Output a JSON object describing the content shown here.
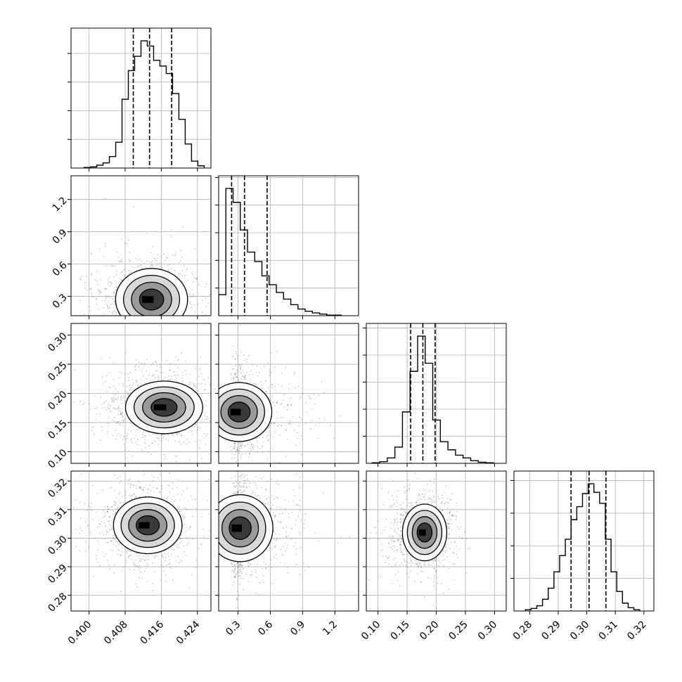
{
  "chart_data": {
    "type": "corner",
    "grid": true,
    "parameters": [
      {
        "range": [
          0.396,
          0.427
        ],
        "ticks": [
          0.4,
          0.408,
          0.416,
          0.424
        ],
        "tick_labels": [
          "0.400",
          "0.408",
          "0.416",
          "0.424"
        ],
        "quantiles": [
          0.4098,
          0.4134,
          0.4183
        ]
      },
      {
        "range": [
          0.12,
          1.42
        ],
        "ticks": [
          0.3,
          0.6,
          0.9,
          1.2
        ],
        "tick_labels": [
          "0.3",
          "0.6",
          "0.9",
          "1.2"
        ],
        "quantiles": [
          0.24,
          0.36,
          0.57
        ]
      },
      {
        "range": [
          0.08,
          0.32
        ],
        "ticks": [
          0.1,
          0.15,
          0.2,
          0.25,
          0.3
        ],
        "tick_labels": [
          "0.10",
          "0.15",
          "0.20",
          "0.25",
          "0.30"
        ],
        "quantiles": [
          0.156,
          0.177,
          0.198
        ]
      },
      {
        "range": [
          0.2745,
          0.3235
        ],
        "ticks": [
          0.28,
          0.29,
          0.3,
          0.31,
          0.32
        ],
        "tick_labels": [
          "0.28",
          "0.29",
          "0.30",
          "0.31",
          "0.32"
        ],
        "quantiles": [
          0.2945,
          0.3008,
          0.3067
        ]
      }
    ],
    "histograms": [
      {
        "param": 0,
        "edges": [
          0.3989,
          0.4003,
          0.4017,
          0.4031,
          0.4045,
          0.4059,
          0.4073,
          0.4087,
          0.4101,
          0.4115,
          0.4129,
          0.4143,
          0.4157,
          0.4171,
          0.4185,
          0.4199,
          0.4213,
          0.4227,
          0.4241,
          0.4255
        ],
        "counts": [
          1,
          2,
          5,
          9,
          20,
          45,
          120,
          170,
          195,
          222,
          213,
          188,
          178,
          165,
          130,
          85,
          42,
          12,
          4
        ]
      },
      {
        "param": 1,
        "edges": [
          0.12,
          0.187,
          0.254,
          0.321,
          0.388,
          0.455,
          0.522,
          0.589,
          0.656,
          0.723,
          0.79,
          0.857,
          0.924,
          0.991,
          1.058,
          1.125,
          1.192,
          1.259
        ],
        "counts": [
          38,
          230,
          205,
          155,
          115,
          98,
          72,
          56,
          42,
          30,
          20,
          12,
          8,
          5,
          3,
          1,
          1
        ]
      },
      {
        "param": 2,
        "edges": [
          0.09,
          0.103,
          0.116,
          0.129,
          0.142,
          0.155,
          0.168,
          0.181,
          0.194,
          0.207,
          0.22,
          0.233,
          0.246,
          0.259,
          0.272,
          0.285,
          0.298
        ],
        "counts": [
          1,
          3,
          10,
          30,
          95,
          170,
          235,
          185,
          80,
          40,
          25,
          15,
          10,
          5,
          2,
          1
        ]
      },
      {
        "param": 3,
        "edges": [
          0.2785,
          0.2805,
          0.2825,
          0.2845,
          0.2865,
          0.2885,
          0.2905,
          0.2925,
          0.2945,
          0.2965,
          0.2985,
          0.3005,
          0.3025,
          0.3045,
          0.3065,
          0.3085,
          0.3105,
          0.3125,
          0.3145,
          0.3165,
          0.3185
        ],
        "counts": [
          2,
          4,
          8,
          18,
          35,
          60,
          85,
          110,
          140,
          160,
          180,
          195,
          182,
          165,
          110,
          60,
          30,
          12,
          5,
          2
        ]
      }
    ],
    "scatter_panels": [
      {
        "x_param": 0,
        "y_param": 1,
        "mode": {
          "x": 0.4128,
          "y": 0.27
        },
        "spread": {
          "x": 0.0042,
          "y": 0.16
        }
      },
      {
        "x_param": 0,
        "y_param": 2,
        "mode": {
          "x": 0.4155,
          "y": 0.176
        },
        "spread": {
          "x": 0.0045,
          "y": 0.025
        }
      },
      {
        "x_param": 1,
        "y_param": 2,
        "mode": {
          "x": 0.27,
          "y": 0.168
        },
        "spread": {
          "x": 0.16,
          "y": 0.028
        }
      },
      {
        "x_param": 0,
        "y_param": 3,
        "mode": {
          "x": 0.412,
          "y": 0.3045
        },
        "spread": {
          "x": 0.004,
          "y": 0.0055
        }
      },
      {
        "x_param": 1,
        "y_param": 3,
        "mode": {
          "x": 0.28,
          "y": 0.3035
        },
        "spread": {
          "x": 0.16,
          "y": 0.0065
        }
      },
      {
        "x_param": 2,
        "y_param": 3,
        "mode": {
          "x": 0.175,
          "y": 0.302
        },
        "spread": {
          "x": 0.02,
          "y": 0.0055
        }
      }
    ],
    "colors": {
      "hist": "#000000",
      "grid": "#b0b0b0",
      "density_dark": "#000000",
      "points": "#000000"
    }
  }
}
